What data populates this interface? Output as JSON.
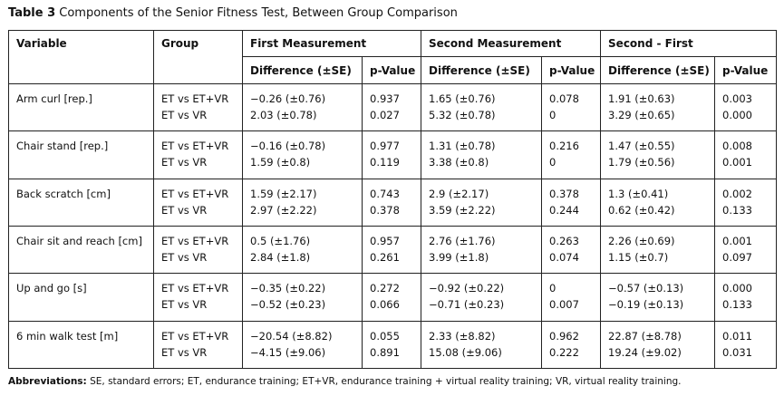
{
  "caption": {
    "label": "Table 3",
    "text": "Components of the Senior Fitness Test, Between Group Comparison"
  },
  "headers": {
    "variable": "Variable",
    "group": "Group",
    "first": "First Measurement",
    "second": "Second Measurement",
    "diff": "Second - First",
    "difference": "Difference (±SE)",
    "pvalue": "p-Value"
  },
  "rows": [
    {
      "variable": "Arm curl [rep.]",
      "groups": [
        "ET vs ET+VR",
        "ET vs VR"
      ],
      "first_diff": [
        "−0.26 (±0.76)",
        "2.03 (±0.78)"
      ],
      "first_p": [
        "0.937",
        "0.027"
      ],
      "second_diff": [
        "1.65 (±0.76)",
        "5.32 (±0.78)"
      ],
      "second_p": [
        "0.078",
        "0"
      ],
      "change_diff": [
        "1.91 (±0.63)",
        "3.29 (±0.65)"
      ],
      "change_p": [
        "0.003",
        "0.000"
      ]
    },
    {
      "variable": "Chair stand [rep.]",
      "groups": [
        "ET vs ET+VR",
        "ET vs VR"
      ],
      "first_diff": [
        "−0.16 (±0.78)",
        "1.59 (±0.8)"
      ],
      "first_p": [
        "0.977",
        "0.119"
      ],
      "second_diff": [
        "1.31 (±0.78)",
        "3.38 (±0.8)"
      ],
      "second_p": [
        "0.216",
        "0"
      ],
      "change_diff": [
        "1.47 (±0.55)",
        "1.79 (±0.56)"
      ],
      "change_p": [
        "0.008",
        "0.001"
      ]
    },
    {
      "variable": "Back scratch [cm]",
      "groups": [
        "ET vs ET+VR",
        "ET vs VR"
      ],
      "first_diff": [
        "1.59 (±2.17)",
        "2.97 (±2.22)"
      ],
      "first_p": [
        "0.743",
        "0.378"
      ],
      "second_diff": [
        "2.9 (±2.17)",
        "3.59 (±2.22)"
      ],
      "second_p": [
        "0.378",
        "0.244"
      ],
      "change_diff": [
        "1.3 (±0.41)",
        "0.62 (±0.42)"
      ],
      "change_p": [
        "0.002",
        "0.133"
      ]
    },
    {
      "variable": "Chair sit and reach [cm]",
      "groups": [
        "ET vs ET+VR",
        "ET vs VR"
      ],
      "first_diff": [
        "0.5 (±1.76)",
        "2.84 (±1.8)"
      ],
      "first_p": [
        "0.957",
        "0.261"
      ],
      "second_diff": [
        "2.76 (±1.76)",
        "3.99 (±1.8)"
      ],
      "second_p": [
        "0.263",
        "0.074"
      ],
      "change_diff": [
        "2.26 (±0.69)",
        "1.15 (±0.7)"
      ],
      "change_p": [
        "0.001",
        "0.097"
      ]
    },
    {
      "variable": "Up and go [s]",
      "groups": [
        "ET vs ET+VR",
        "ET vs VR"
      ],
      "first_diff": [
        "−0.35 (±0.22)",
        "−0.52 (±0.23)"
      ],
      "first_p": [
        "0.272",
        "0.066"
      ],
      "second_diff": [
        "−0.92 (±0.22)",
        "−0.71 (±0.23)"
      ],
      "second_p": [
        "0",
        "0.007"
      ],
      "change_diff": [
        "−0.57 (±0.13)",
        "−0.19 (±0.13)"
      ],
      "change_p": [
        "0.000",
        "0.133"
      ]
    },
    {
      "variable": "6 min walk test [m]",
      "groups": [
        "ET vs ET+VR",
        "ET vs VR"
      ],
      "first_diff": [
        "−20.54 (±8.82)",
        "−4.15 (±9.06)"
      ],
      "first_p": [
        "0.055",
        "0.891"
      ],
      "second_diff": [
        "2.33 (±8.82)",
        "15.08 (±9.06)"
      ],
      "second_p": [
        "0.962",
        "0.222"
      ],
      "change_diff": [
        "22.87 (±8.78)",
        "19.24 (±9.02)"
      ],
      "change_p": [
        "0.011",
        "0.031"
      ]
    }
  ],
  "footnote": {
    "label": "Abbreviations:",
    "text": "SE, standard errors; ET, endurance training; ET+VR, endurance training + virtual reality training; VR, virtual reality training."
  }
}
